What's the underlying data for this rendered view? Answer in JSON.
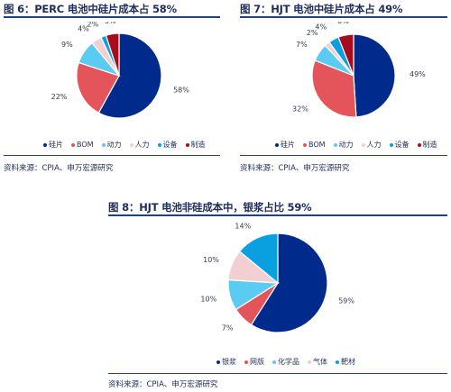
{
  "chart_data": [
    {
      "type": "pie",
      "title": "图 6：PERC 电池中硅片成本占 58%",
      "slices": [
        {
          "label": "硅片",
          "value": 58,
          "text": "58%",
          "color": "#002b8c"
        },
        {
          "label": "BOM",
          "value": 22,
          "text": "22%",
          "color": "#e4555b"
        },
        {
          "label": "动力",
          "value": 9,
          "text": "9%",
          "color": "#5ccbf2"
        },
        {
          "label": "人力",
          "value": 4,
          "text": "4%",
          "color": "#f2cfd3"
        },
        {
          "label": "设备",
          "value": 2,
          "text": "2%",
          "color": "#0aa0e0"
        },
        {
          "label": "制造",
          "value": 5,
          "text": "5%",
          "color": "#a50d1e"
        }
      ],
      "legend_position": "bottom",
      "source": "资料来源：CPIA、申万宏源研究"
    },
    {
      "type": "pie",
      "title": "图 7：HJT 电池中硅片成本占 49%",
      "slices": [
        {
          "label": "硅片",
          "value": 49,
          "text": "49%",
          "color": "#002b8c"
        },
        {
          "label": "BOM",
          "value": 32,
          "text": "32%",
          "color": "#e4555b"
        },
        {
          "label": "动力",
          "value": 7,
          "text": "7%",
          "color": "#5ccbf2"
        },
        {
          "label": "人力",
          "value": 2,
          "text": "2%",
          "color": "#f2cfd3"
        },
        {
          "label": "设备",
          "value": 4,
          "text": "4%",
          "color": "#0aa0e0"
        },
        {
          "label": "制造",
          "value": 6,
          "text": "6%",
          "color": "#a50d1e"
        }
      ],
      "legend_position": "bottom",
      "source": "资料来源：CPIA、申万宏源研究"
    },
    {
      "type": "pie",
      "title": "图 8：HJT 电池非硅成本中，银浆占比 59%",
      "slices": [
        {
          "label": "银浆",
          "value": 59,
          "text": "59%",
          "color": "#002b8c"
        },
        {
          "label": "网版",
          "value": 7,
          "text": "7%",
          "color": "#e4555b"
        },
        {
          "label": "化学品",
          "value": 10,
          "text": "10%",
          "color": "#5ccbf2"
        },
        {
          "label": "气体",
          "value": 10,
          "text": "10%",
          "color": "#f2cfd3"
        },
        {
          "label": "靶材",
          "value": 14,
          "text": "14%",
          "color": "#0aa0e0"
        }
      ],
      "legend_position": "bottom",
      "source": "资料来源：CPIA、申万宏源研究"
    }
  ]
}
